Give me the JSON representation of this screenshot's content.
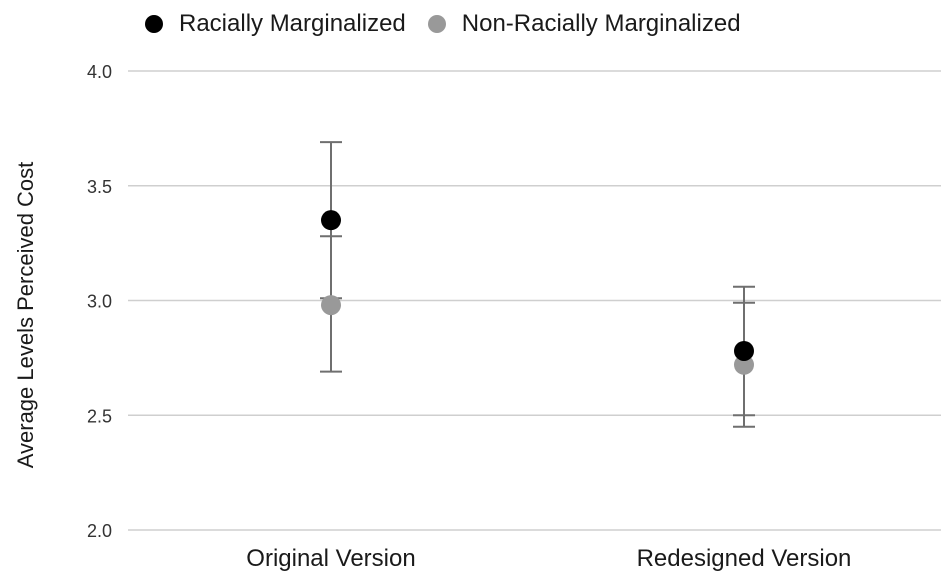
{
  "chart_data": {
    "type": "scatter",
    "title": "",
    "xlabel": "",
    "ylabel": "Average Levels Perceived Cost",
    "ylim": [
      2.0,
      4.0
    ],
    "yticks": [
      "2.0",
      "2.5",
      "3.0",
      "3.5",
      "4.0"
    ],
    "categories": [
      "Original Version",
      "Redesigned Version"
    ],
    "grid": true,
    "legend_position": "top-left",
    "series": [
      {
        "name": "Racially Marginalized",
        "color": "#000000",
        "values": [
          3.35,
          2.78
        ],
        "error_low": [
          3.01,
          2.5
        ],
        "error_high": [
          3.69,
          3.06
        ]
      },
      {
        "name": "Non-Racially Marginalized",
        "color": "#999999",
        "values": [
          2.98,
          2.72
        ],
        "error_low": [
          2.69,
          2.45
        ],
        "error_high": [
          3.28,
          2.99
        ]
      }
    ]
  }
}
